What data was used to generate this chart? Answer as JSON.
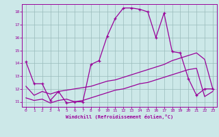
{
  "background_color": "#cce8e8",
  "line_color": "#990099",
  "grid_color": "#99bbbb",
  "xlim": [
    -0.5,
    23.5
  ],
  "ylim": [
    10.6,
    18.6
  ],
  "yticks": [
    11,
    12,
    13,
    14,
    15,
    16,
    17,
    18
  ],
  "xticks": [
    0,
    1,
    2,
    3,
    4,
    5,
    6,
    7,
    8,
    9,
    10,
    11,
    12,
    13,
    14,
    15,
    16,
    17,
    18,
    19,
    20,
    21,
    22,
    23
  ],
  "xlabel": "Windchill (Refroidissement éolien,°C)",
  "line1_x": [
    0,
    1,
    2,
    3,
    4,
    5,
    6,
    7,
    8,
    9,
    10,
    11,
    12,
    13,
    14,
    15,
    16,
    17,
    18,
    19,
    20,
    21,
    22,
    23
  ],
  "line1_y": [
    14.1,
    12.4,
    12.4,
    11.1,
    11.8,
    10.9,
    11.0,
    11.0,
    13.9,
    14.2,
    16.1,
    17.5,
    18.3,
    18.3,
    18.2,
    18.0,
    16.0,
    17.9,
    14.9,
    14.8,
    12.8,
    11.5,
    12.0,
    12.0
  ],
  "line2_x": [
    0,
    1,
    2,
    3,
    4,
    5,
    6,
    7,
    8,
    9,
    10,
    11,
    12,
    13,
    14,
    15,
    16,
    17,
    18,
    19,
    20,
    21,
    22,
    23
  ],
  "line2_y": [
    12.2,
    11.5,
    11.8,
    11.6,
    11.8,
    11.9,
    12.0,
    12.1,
    12.2,
    12.4,
    12.6,
    12.7,
    12.9,
    13.1,
    13.3,
    13.5,
    13.7,
    13.9,
    14.2,
    14.4,
    14.6,
    14.8,
    14.3,
    12.0
  ],
  "line3_x": [
    0,
    1,
    2,
    3,
    4,
    5,
    6,
    7,
    8,
    9,
    10,
    11,
    12,
    13,
    14,
    15,
    16,
    17,
    18,
    19,
    20,
    21,
    22,
    23
  ],
  "line3_y": [
    11.3,
    11.1,
    11.2,
    10.9,
    11.1,
    11.2,
    11.0,
    11.1,
    11.3,
    11.5,
    11.7,
    11.9,
    12.0,
    12.2,
    12.4,
    12.5,
    12.7,
    12.9,
    13.1,
    13.3,
    13.5,
    13.6,
    11.4,
    11.8
  ]
}
